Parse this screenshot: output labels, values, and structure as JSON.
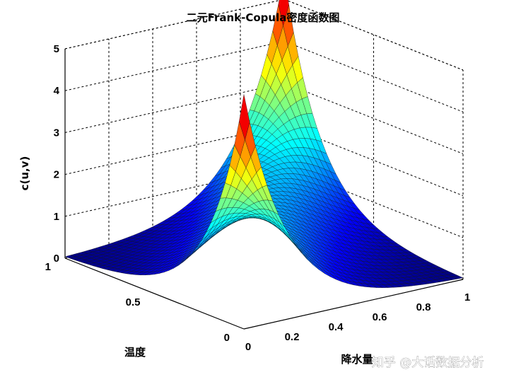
{
  "chart_data": {
    "type": "surface",
    "title": "二元Frank-Copula密度函数图",
    "xlabel": "降水量",
    "ylabel": "温度",
    "zlabel": "c(u,v)",
    "xlim": [
      0,
      1
    ],
    "ylim": [
      0,
      1
    ],
    "zlim": [
      0,
      5
    ],
    "xticks": [
      "0",
      "0.2",
      "0.4",
      "0.6",
      "0.8",
      "1"
    ],
    "yticks": [
      "0",
      "0.5",
      "1"
    ],
    "zticks": [
      "0",
      "1",
      "2",
      "3",
      "4",
      "5"
    ],
    "theta": 5,
    "peak_value": 5.6,
    "grid": true,
    "colormap": "jet"
  },
  "watermark": "知乎 @大话数据分析"
}
